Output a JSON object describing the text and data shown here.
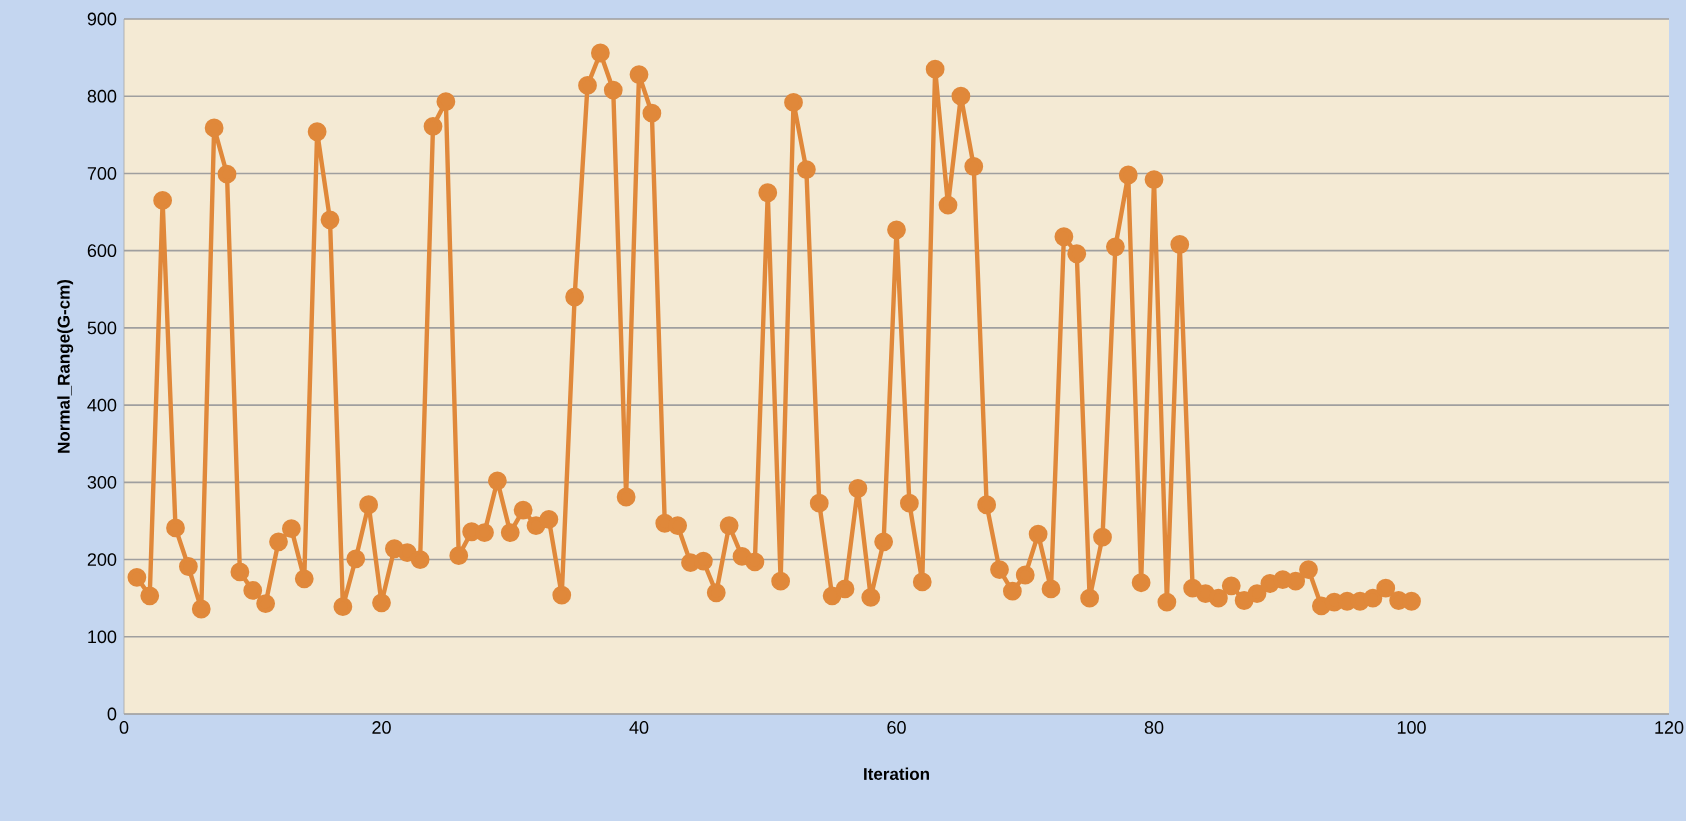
{
  "chart_data": {
    "type": "line",
    "xlabel": "Iteration",
    "ylabel": "Normal_Range(G-cm)",
    "x": [
      1,
      2,
      3,
      4,
      5,
      6,
      7,
      8,
      9,
      10,
      11,
      12,
      13,
      14,
      15,
      16,
      17,
      18,
      19,
      20,
      21,
      22,
      23,
      24,
      25,
      26,
      27,
      28,
      29,
      30,
      31,
      32,
      33,
      34,
      35,
      36,
      37,
      38,
      39,
      40,
      41,
      42,
      43,
      44,
      45,
      46,
      47,
      48,
      49,
      50,
      51,
      52,
      53,
      54,
      55,
      56,
      57,
      58,
      59,
      60,
      61,
      62,
      63,
      64,
      65,
      66,
      67,
      68,
      69,
      70,
      71,
      72,
      73,
      74,
      75,
      76,
      77,
      78,
      79,
      80,
      81,
      82,
      83,
      84,
      85,
      86,
      87,
      88,
      89,
      90,
      91,
      92,
      93,
      94,
      95,
      96,
      97,
      98,
      99,
      100
    ],
    "series": [
      {
        "color": "#e0883a",
        "values": [
          177,
          153,
          665,
          241,
          191,
          136,
          759,
          699,
          184,
          160,
          143,
          223,
          240,
          175,
          754,
          640,
          139,
          201,
          271,
          144,
          214,
          209,
          200,
          761,
          793,
          205,
          236,
          235,
          302,
          235,
          264,
          244,
          252,
          154,
          540,
          814,
          856,
          808,
          281,
          828,
          778,
          247,
          244,
          196,
          198,
          157,
          244,
          204,
          197,
          675,
          172,
          792,
          705,
          273,
          153,
          162,
          292,
          151,
          223,
          627,
          273,
          171,
          835,
          659,
          800,
          709,
          271,
          187,
          159,
          180,
          233,
          162,
          618,
          596,
          150,
          229,
          605,
          698,
          170,
          692,
          145,
          608,
          163,
          156,
          150,
          166,
          147,
          156,
          169,
          174,
          172,
          187,
          140,
          145,
          146,
          146,
          150,
          163,
          147,
          146
        ]
      }
    ],
    "xlim": [
      0,
      120
    ],
    "xticks": [
      0,
      20,
      40,
      60,
      80,
      100,
      120
    ],
    "ylim": [
      0,
      900
    ],
    "yticks": [
      0,
      100,
      200,
      300,
      400,
      500,
      600,
      700,
      800,
      900
    ],
    "grid": "y",
    "marker": "circle",
    "line_style": "solid"
  }
}
